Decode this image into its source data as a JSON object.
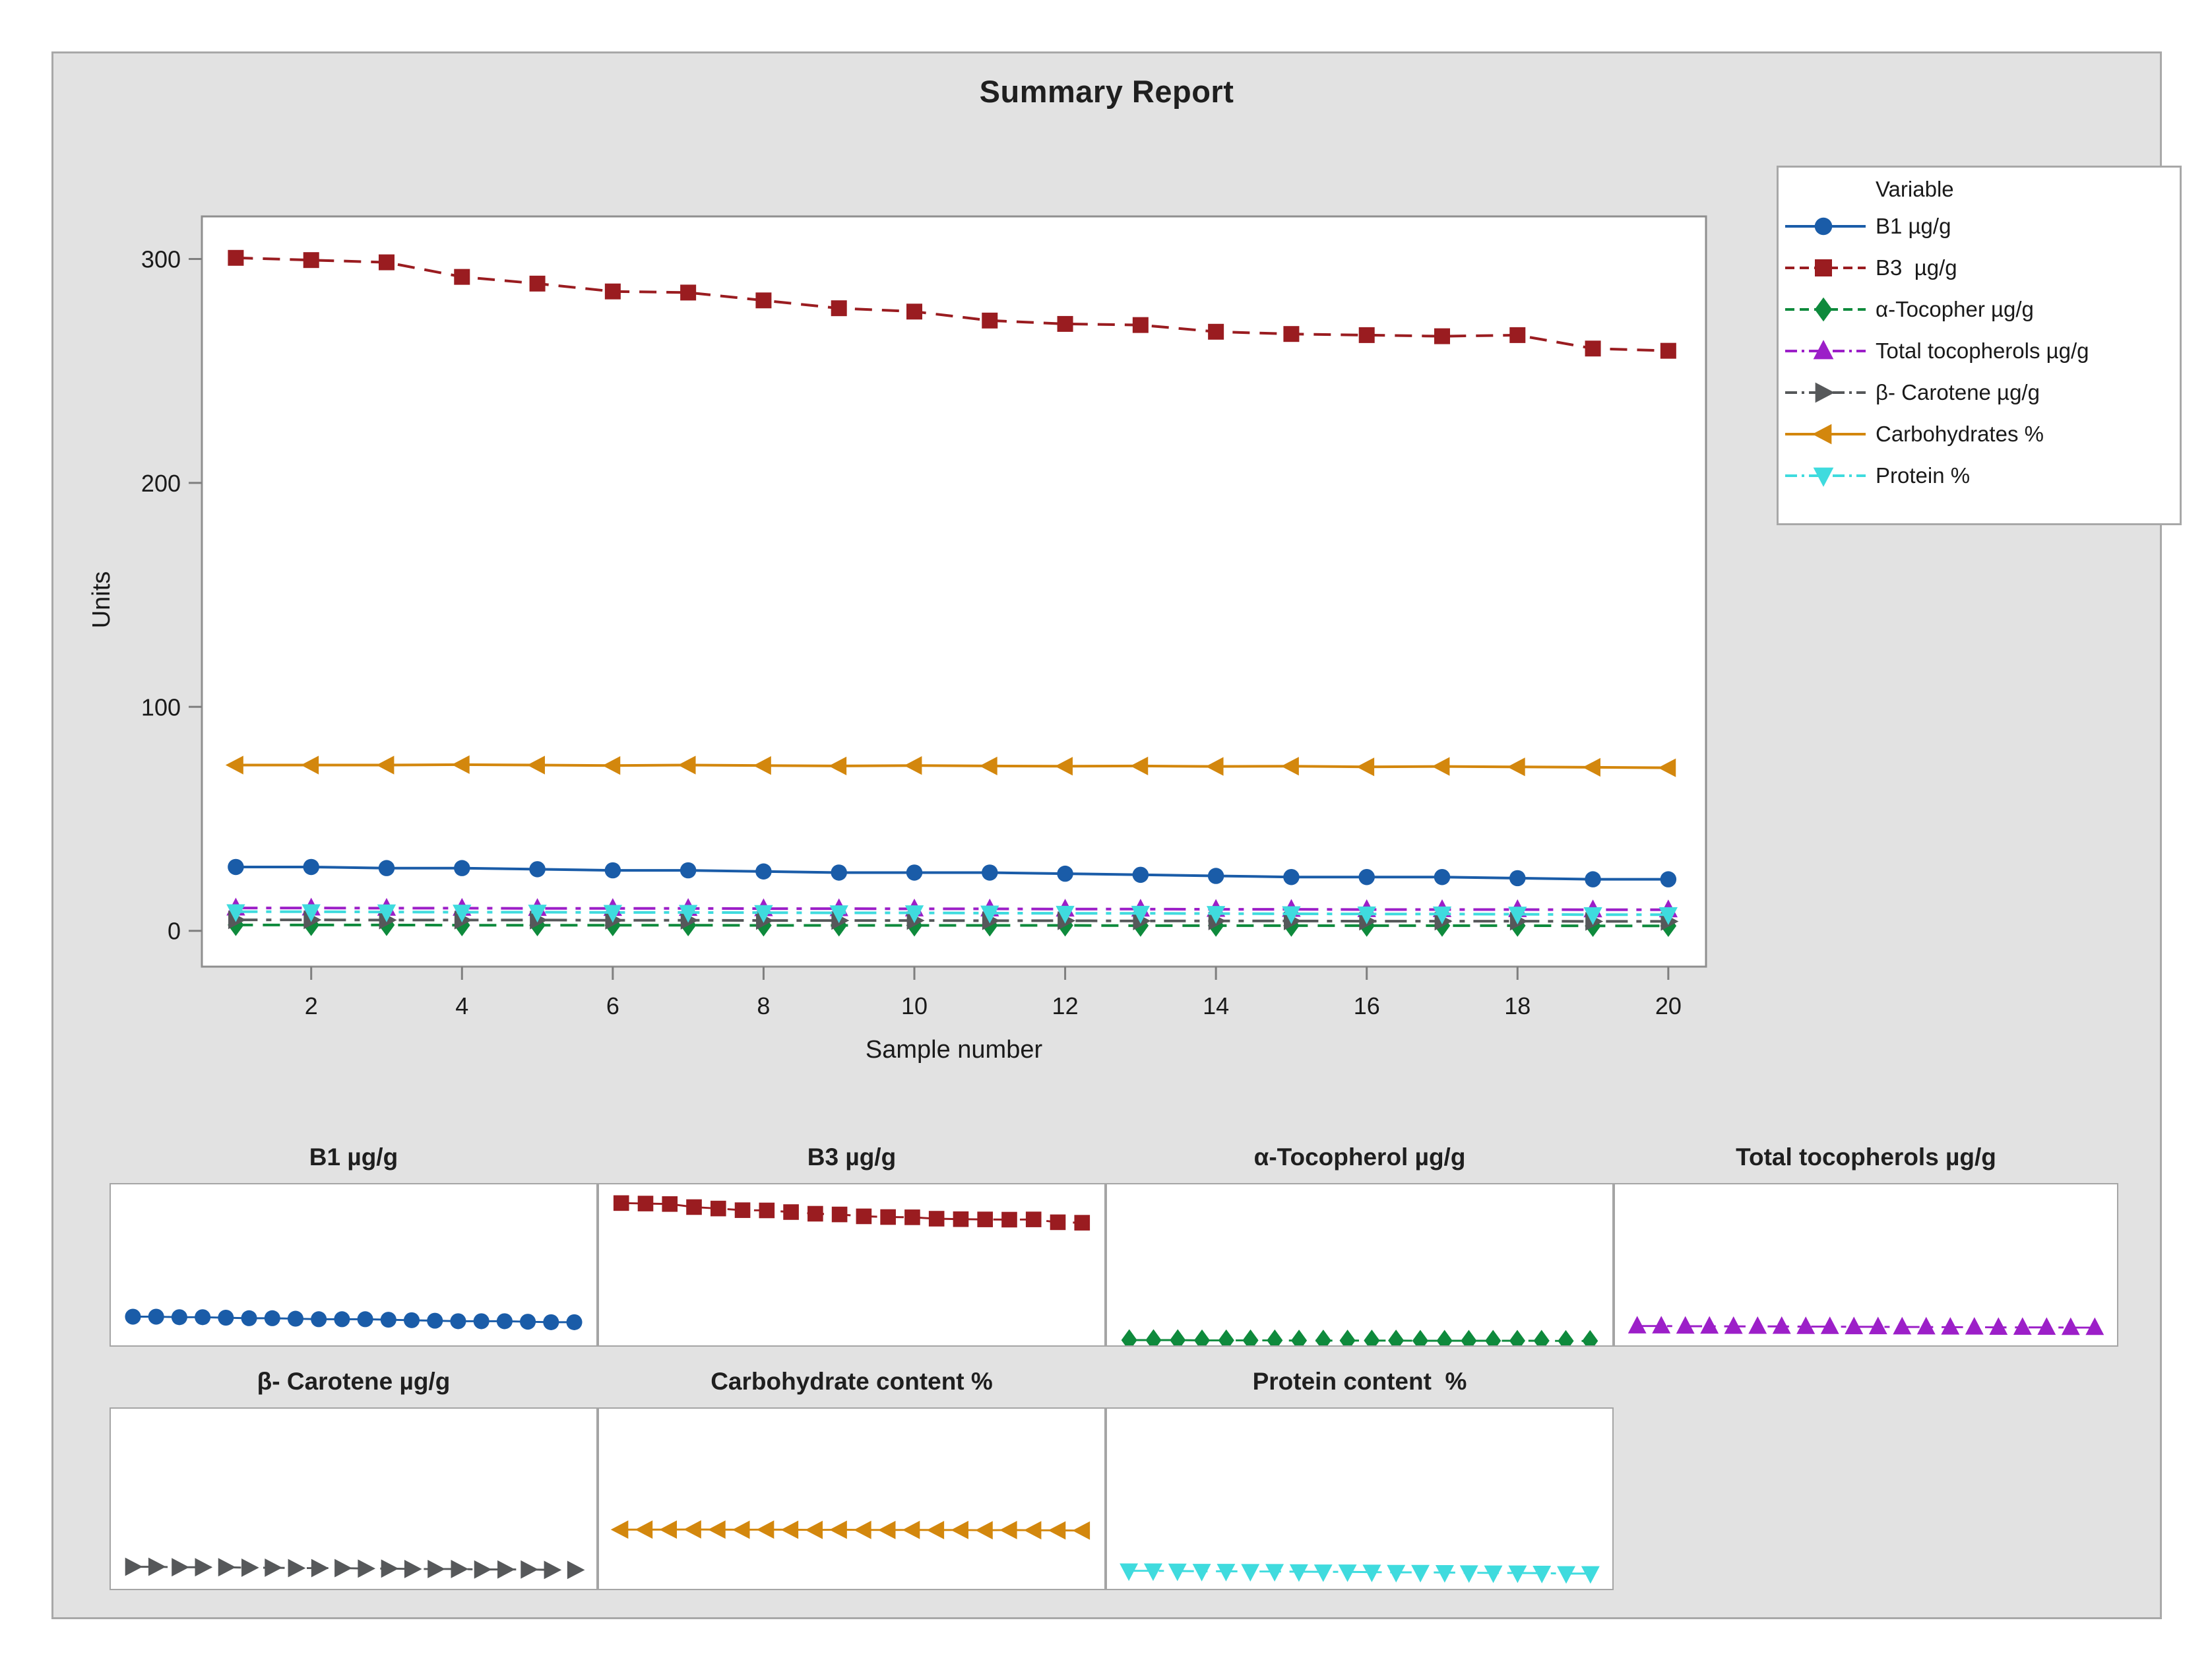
{
  "palette": {
    "background": "#e2e2e2",
    "panel_fill": "#ffffff",
    "border": "#a8a8a8",
    "plot_border": "#8f8f8f",
    "text": "#1a1a1a"
  },
  "chart_data": {
    "type": "line",
    "title": "Summary Report",
    "ylabel": "Units",
    "xlabel": "Sample number",
    "legend_title": "Variable",
    "legend_position": "outside upper right",
    "grid": false,
    "x": [
      1,
      2,
      3,
      4,
      5,
      6,
      7,
      8,
      9,
      10,
      11,
      12,
      13,
      14,
      15,
      16,
      17,
      18,
      19,
      20
    ],
    "xticks": [
      2,
      4,
      6,
      8,
      10,
      12,
      14,
      16,
      18,
      20
    ],
    "yticks": [
      0,
      100,
      200,
      300
    ],
    "xlim": [
      0.55,
      20.5
    ],
    "ylim": [
      -16,
      319
    ],
    "series": [
      {
        "name": "B1 µg/g",
        "legend_label": "B1 µg/g",
        "color": "#1a5ca8",
        "marker": "circle",
        "linestyle": "solid",
        "values": [
          28.5,
          28.5,
          28,
          28,
          27.5,
          27,
          27,
          26.5,
          26,
          26,
          26,
          25.5,
          25,
          24.5,
          24,
          24,
          24,
          23.5,
          23,
          23
        ]
      },
      {
        "name": "B3 µg/g",
        "legend_label": "B3  µg/g",
        "color": "#9a1c20",
        "marker": "square",
        "linestyle": "dash",
        "values": [
          300.5,
          299.5,
          298.5,
          292,
          289,
          285.5,
          285,
          281.5,
          278,
          276.5,
          272.5,
          271,
          270.5,
          267.5,
          266.5,
          266,
          265.5,
          266,
          260,
          259
        ]
      },
      {
        "name": "α-Tocopherol µg/g",
        "legend_label": "α-Tocopher µg/g",
        "color": "#0e8a3c",
        "marker": "diamond",
        "linestyle": "dash",
        "values": [
          2.6,
          2.6,
          2.6,
          2.5,
          2.5,
          2.5,
          2.5,
          2.4,
          2.4,
          2.4,
          2.4,
          2.4,
          2.3,
          2.3,
          2.3,
          2.3,
          2.3,
          2.3,
          2.2,
          2.2
        ]
      },
      {
        "name": "Total tocopherols µg/g",
        "legend_label": "Total tocopherols µg/g",
        "color": "#9c1fc8",
        "marker": "triangle-up",
        "linestyle": "dashdot",
        "values": [
          10.2,
          10.2,
          10.1,
          10.1,
          10,
          10,
          10,
          9.9,
          9.9,
          9.8,
          9.8,
          9.7,
          9.7,
          9.6,
          9.6,
          9.5,
          9.5,
          9.5,
          9.4,
          9.4
        ]
      },
      {
        "name": "β- Carotene µg/g",
        "legend_label": "β- Carotene µg/g",
        "color": "#56585a",
        "marker": "triangle-right",
        "linestyle": "dashdot",
        "values": [
          4.9,
          4.9,
          4.8,
          4.8,
          4.8,
          4.7,
          4.7,
          4.6,
          4.6,
          4.6,
          4.5,
          4.5,
          4.4,
          4.4,
          4.4,
          4.3,
          4.3,
          4.3,
          4.2,
          4.2
        ]
      },
      {
        "name": "Carbohydrates %",
        "legend_label": "Carbohydrates %",
        "color": "#d3870d",
        "marker": "triangle-left",
        "linestyle": "solid",
        "values": [
          74,
          74,
          74,
          74.2,
          74,
          73.8,
          74,
          73.8,
          73.6,
          73.8,
          73.6,
          73.5,
          73.6,
          73.4,
          73.5,
          73.2,
          73.4,
          73.2,
          73,
          72.8
        ]
      },
      {
        "name": "Protein %",
        "legend_label": "Protein %",
        "color": "#3fdbde",
        "marker": "triangle-down",
        "linestyle": "dashdot",
        "values": [
          8.5,
          8.5,
          8.4,
          8.3,
          8.3,
          8.2,
          8.2,
          8.1,
          8,
          8,
          7.9,
          7.8,
          7.8,
          7.7,
          7.6,
          7.5,
          7.5,
          7.4,
          7.2,
          7.2
        ]
      }
    ],
    "mini_panels": [
      {
        "title": "B1 µg/g",
        "series": "B1 µg/g",
        "ylim": [
          0,
          160
        ]
      },
      {
        "title": "B3 µg/g",
        "series": "B3 µg/g",
        "ylim": [
          0,
          340
        ]
      },
      {
        "title": "α-Tocopherol µg/g",
        "series": "α-Tocopherol µg/g",
        "ylim": [
          0,
          80
        ]
      },
      {
        "title": "Total tocopherols µg/g",
        "series": "Total tocopherols µg/g",
        "ylim": [
          0,
          85
        ]
      },
      {
        "title": "β- Carotene µg/g",
        "series": "β- Carotene µg/g",
        "ylim": [
          0,
          40
        ]
      },
      {
        "title": "Carbohydrate content %",
        "series": "Carbohydrates %",
        "ylim": [
          0,
          225
        ]
      },
      {
        "title": "Protein content  %",
        "series": "Protein %",
        "ylim": [
          0,
          85
        ]
      }
    ]
  }
}
